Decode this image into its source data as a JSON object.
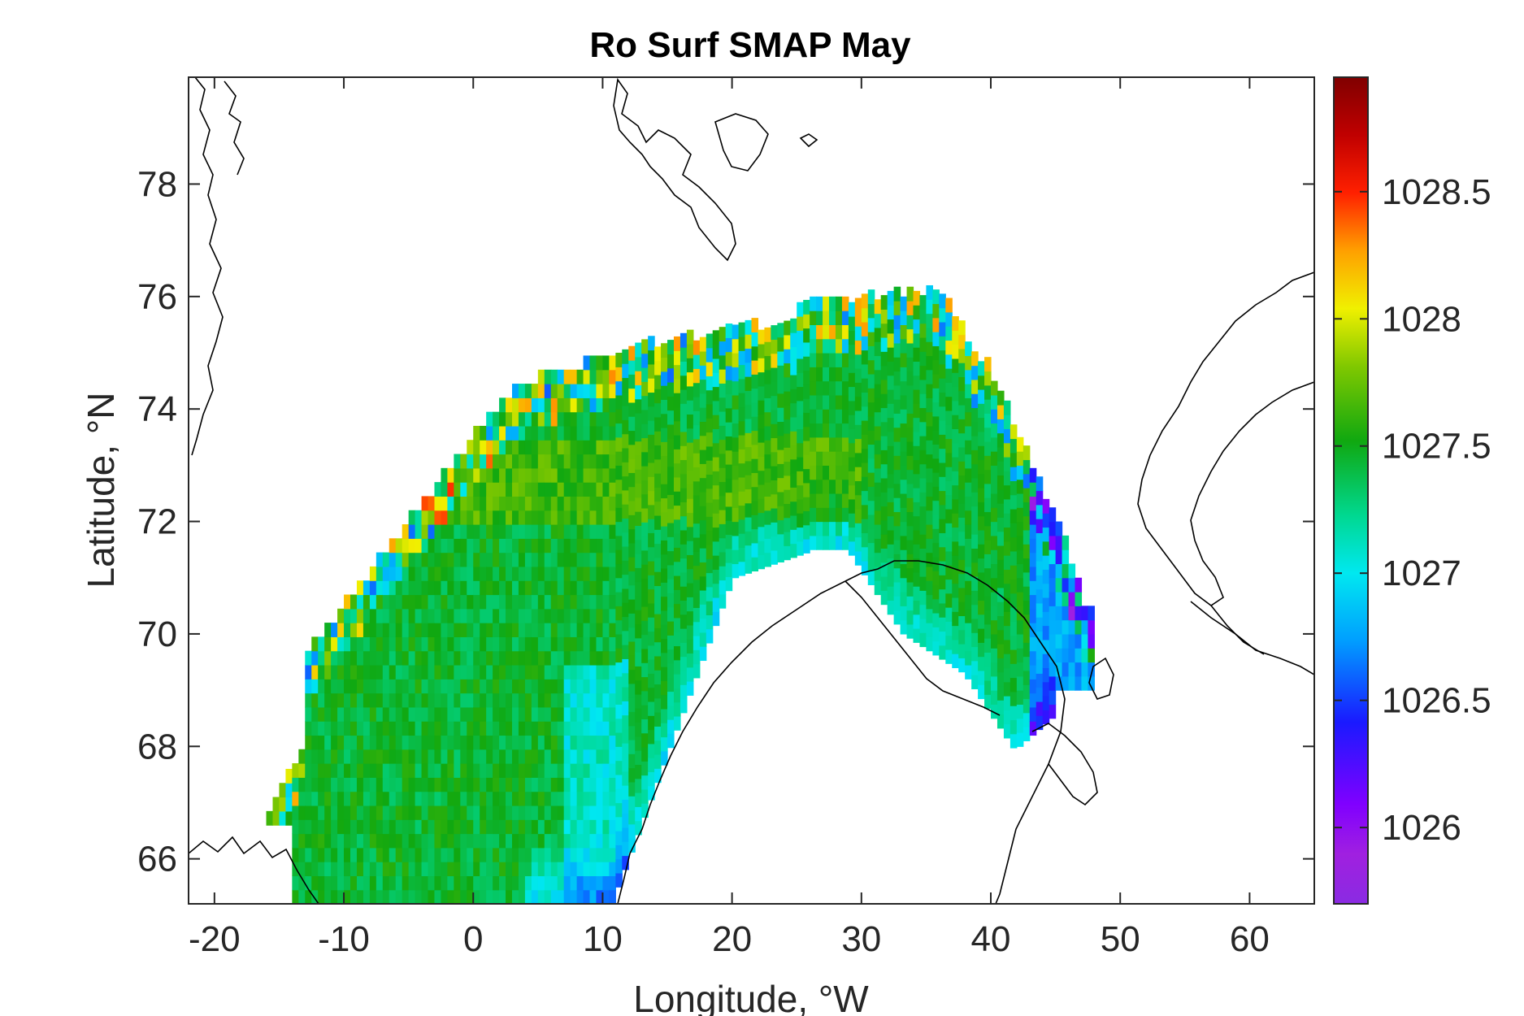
{
  "chart_data": {
    "type": "heatmap",
    "title": "Ro Surf SMAP May",
    "xlabel": "Longitude, °W",
    "ylabel": "Latitude, °N",
    "xlim": [
      -22,
      65
    ],
    "ylim": [
      65.2,
      79.9
    ],
    "xticks": [
      -20,
      -10,
      0,
      10,
      20,
      30,
      40,
      50,
      60
    ],
    "xtick_labels": [
      "-20",
      "-10",
      "0",
      "10",
      "20",
      "30",
      "40",
      "50",
      "60"
    ],
    "yticks": [
      66,
      68,
      70,
      72,
      74,
      76,
      78
    ],
    "ytick_labels": [
      "66",
      "68",
      "70",
      "72",
      "74",
      "76",
      "78"
    ],
    "colorbar": {
      "colormap": "jet-like (purple to dark red)",
      "clim": [
        1025.7,
        1028.95
      ],
      "ticks": [
        1026,
        1026.5,
        1027,
        1027.5,
        1028,
        1028.5
      ],
      "tick_labels": [
        "1026",
        "1026.5",
        "1027",
        "1027.5",
        "1028",
        "1028.5"
      ]
    },
    "field_description": "Surface density field over the Norwegian and Barents Seas; mostly ~1027.3–1027.6 (green) in the open Norwegian Sea, ~1026.9–1027.1 (cyan/blue) along the Norwegian coast, lower values (purple) near 45°E and a coastal strip near 10°E, 67–68°N.",
    "grid": false,
    "legend": "none"
  }
}
